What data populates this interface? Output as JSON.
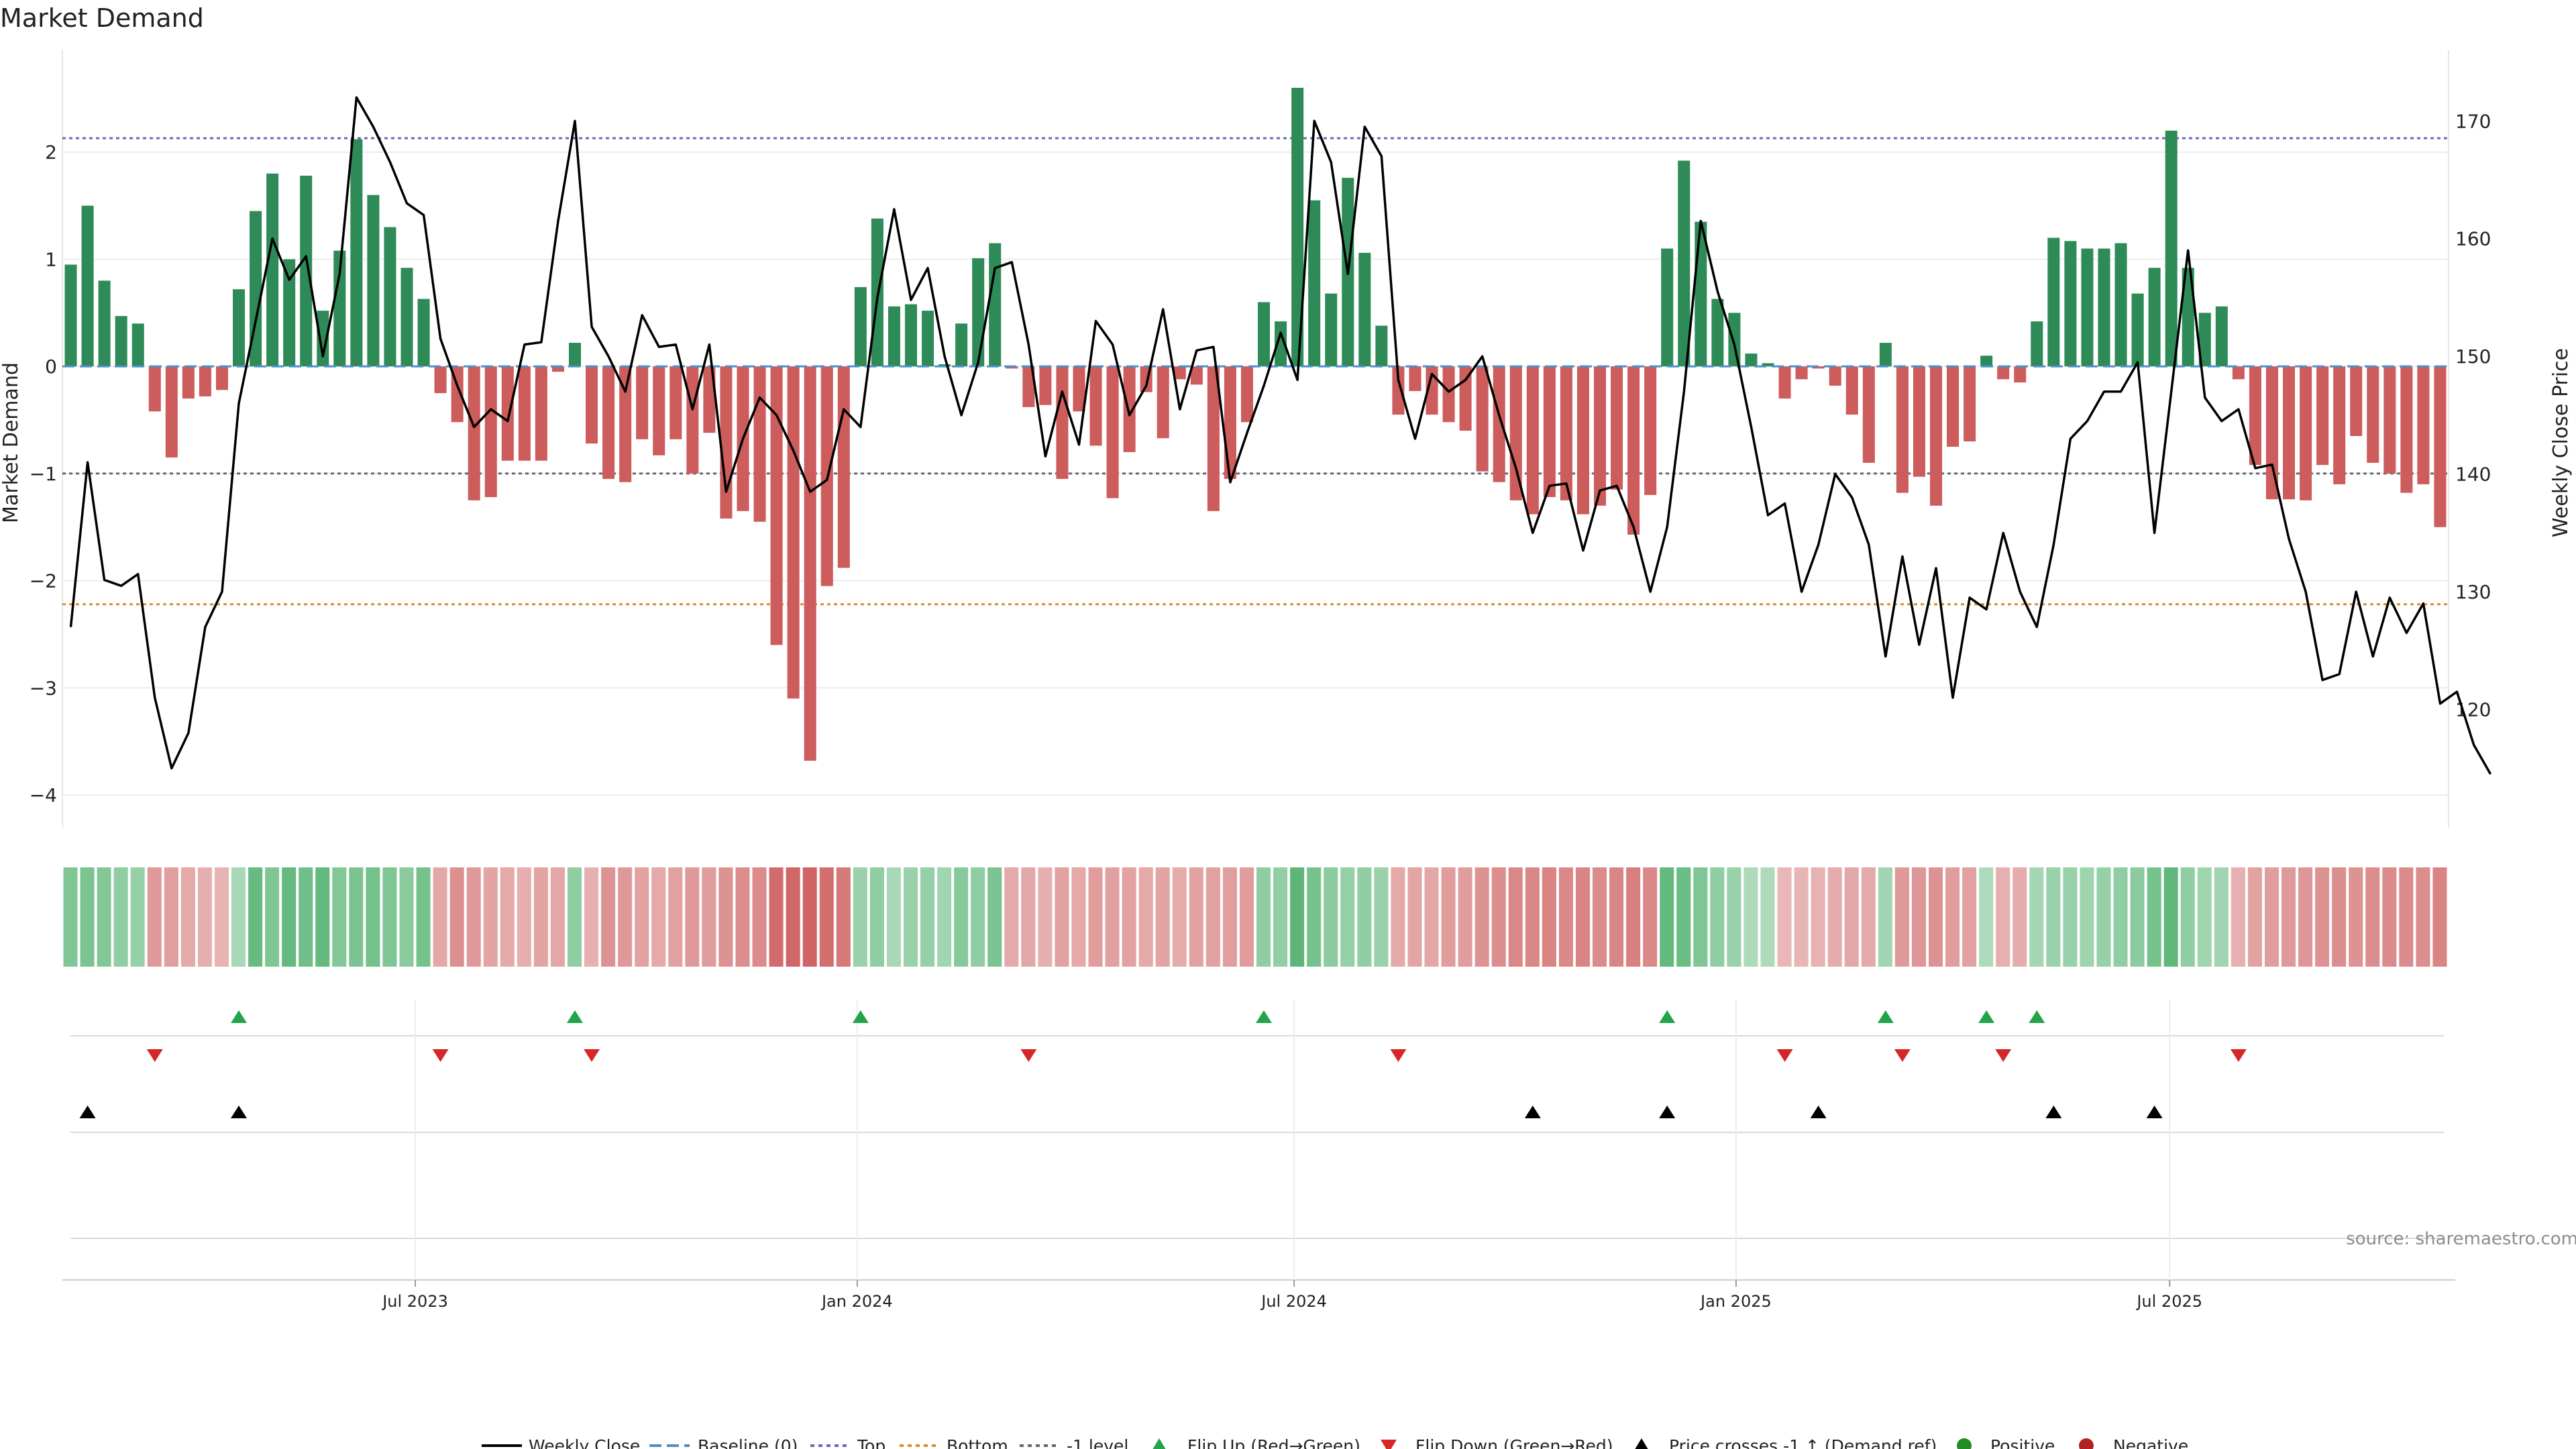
{
  "chart_data": {
    "type": "bar",
    "title": "Market Demand",
    "ylabel_left": "Market Demand",
    "ylabel_right": "Weekly Close Price",
    "ylim_left": [
      -4.3,
      2.95
    ],
    "ylim_right": [
      110,
      176
    ],
    "yticks_left": [
      2,
      1,
      0,
      -1,
      -2,
      -3,
      -4
    ],
    "yticks_left_labels": [
      "2",
      "1",
      "0",
      "−1",
      "−2",
      "−3",
      "−4"
    ],
    "yticks_right": [
      170,
      160,
      150,
      140,
      130,
      120
    ],
    "x_tick_labels": [
      "Jul 2023",
      "Jan 2024",
      "Jul 2024",
      "Jan 2025",
      "Jul 2025"
    ],
    "x_tick_weeks": [
      21,
      47.3,
      73.3,
      99.6,
      125.4
    ],
    "reference_lines": {
      "top": 2.13,
      "minus_one": -1.0,
      "bottom": -2.22,
      "baseline": 0
    },
    "colors": {
      "positive": "#2e8b57",
      "negative": "#cd5c5c",
      "price": "#000000",
      "top_line": "#6a6ab0",
      "bottom_line": "#e08a2c",
      "minus_one_line": "#666677",
      "baseline": "#4a90c8",
      "flip_up": "#23a34a",
      "flip_down": "#d62728",
      "cross": "#000000",
      "positive_dot": "#228b22",
      "negative_dot": "#b22222"
    },
    "demand_values": [
      0.95,
      1.5,
      0.8,
      0.47,
      0.4,
      -0.42,
      -0.85,
      -0.3,
      -0.28,
      -0.22,
      0.72,
      1.45,
      1.8,
      1.0,
      1.78,
      0.52,
      1.08,
      2.12,
      1.6,
      1.3,
      0.92,
      0.63,
      -0.25,
      -0.52,
      -1.25,
      -1.22,
      -0.88,
      -0.88,
      -0.88,
      -0.05,
      0.22,
      -0.72,
      -1.05,
      -1.08,
      -0.68,
      -0.83,
      -0.68,
      -1.0,
      -0.62,
      -1.42,
      -1.35,
      -1.45,
      -2.6,
      -3.1,
      -3.68,
      -2.05,
      -1.88,
      0.74,
      1.38,
      0.56,
      0.58,
      0.52,
      0.02,
      0.4,
      1.01,
      1.15,
      -0.02,
      -0.38,
      -0.36,
      -1.05,
      -0.42,
      -0.74,
      -1.23,
      -0.8,
      -0.24,
      -0.67,
      -0.12,
      -0.17,
      -1.35,
      -1.05,
      -0.52,
      0.6,
      0.42,
      2.6,
      1.55,
      0.68,
      1.76,
      1.06,
      0.38,
      -0.45,
      -0.23,
      -0.45,
      -0.52,
      -0.6,
      -0.98,
      -1.08,
      -1.25,
      -1.38,
      -1.22,
      -1.25,
      -1.38,
      -1.3,
      -1.15,
      -1.57,
      -1.2,
      1.1,
      1.92,
      1.35,
      0.63,
      0.5,
      0.12,
      0.03,
      -0.3,
      -0.12,
      -0.02,
      -0.18,
      -0.45,
      -0.9,
      0.22,
      -1.18,
      -1.03,
      -1.3,
      -0.75,
      -0.7,
      0.1,
      -0.12,
      -0.15,
      0.42,
      1.2,
      1.17,
      1.1,
      1.1,
      1.15,
      0.68,
      0.92,
      2.2,
      0.92,
      0.5,
      0.56,
      -0.12,
      -0.92,
      -1.24,
      -1.24,
      -1.25,
      -0.92,
      -1.1,
      -0.65,
      -0.9,
      -1.0,
      -1.18,
      -1.1,
      -1.5
    ],
    "price_values": [
      127,
      141,
      131,
      130.5,
      131.5,
      121,
      115,
      118,
      127,
      130,
      146,
      153,
      160,
      156.5,
      158.5,
      150,
      157,
      172,
      169.5,
      166.5,
      163,
      162,
      151.5,
      147.5,
      144,
      145.5,
      144.5,
      151,
      151.2,
      161.5,
      170,
      152.5,
      150,
      147,
      153.5,
      150.8,
      151,
      145.5,
      151,
      138.5,
      143,
      146.5,
      145,
      142,
      138.5,
      139.5,
      145.5,
      144,
      155,
      162.5,
      154.8,
      157.5,
      150,
      145,
      149.5,
      157.5,
      158,
      151,
      141.5,
      147,
      142.5,
      153,
      151,
      145,
      147.5,
      154,
      145.5,
      150.5,
      150.8,
      139.3,
      143.5,
      147.5,
      152,
      148,
      170,
      166.5,
      157,
      169.5,
      167,
      148,
      143,
      148.5,
      147,
      148,
      150,
      145,
      140.5,
      135,
      139,
      139.2,
      133.5,
      138.6,
      139,
      135.5,
      130,
      135.5,
      147,
      161.5,
      155.5,
      151,
      144,
      136.5,
      137.5,
      130,
      134,
      140,
      138,
      134,
      124.5,
      133,
      125.5,
      132,
      121,
      129.5,
      128.5,
      135,
      130,
      127,
      134,
      143,
      144.5,
      147,
      147,
      149.5,
      135,
      147,
      159,
      146.5,
      144.5,
      145.5,
      140.5,
      140.8,
      134.5,
      130,
      122.5,
      123,
      130,
      124.5,
      129.5,
      126.5,
      129,
      120.5,
      121.5,
      117,
      114.5
    ],
    "heat_strip_values": [
      0.72,
      0.75,
      0.7,
      0.62,
      0.58,
      -0.62,
      -0.58,
      -0.5,
      -0.46,
      -0.44,
      0.45,
      0.88,
      0.72,
      0.9,
      0.82,
      0.9,
      0.7,
      0.75,
      0.8,
      0.72,
      0.65,
      0.78,
      -0.52,
      -0.68,
      -0.62,
      -0.54,
      -0.5,
      -0.47,
      -0.54,
      -0.52,
      0.62,
      -0.45,
      -0.66,
      -0.62,
      -0.55,
      -0.5,
      -0.56,
      -0.62,
      -0.6,
      -0.66,
      -0.7,
      -0.72,
      -0.95,
      -0.98,
      -1.0,
      -0.92,
      -0.85,
      0.55,
      0.62,
      0.45,
      0.55,
      0.58,
      0.5,
      0.68,
      0.62,
      0.75,
      -0.5,
      -0.52,
      -0.46,
      -0.55,
      -0.5,
      -0.6,
      -0.56,
      -0.55,
      -0.5,
      -0.54,
      -0.48,
      -0.55,
      -0.56,
      -0.58,
      -0.6,
      0.62,
      0.6,
      0.95,
      0.78,
      0.64,
      0.58,
      0.6,
      0.55,
      -0.5,
      -0.54,
      -0.52,
      -0.6,
      -0.6,
      -0.66,
      -0.7,
      -0.74,
      -0.75,
      -0.78,
      -0.74,
      -0.76,
      -0.72,
      -0.76,
      -0.8,
      -0.74,
      0.9,
      0.86,
      0.72,
      0.62,
      0.55,
      0.42,
      0.42,
      -0.4,
      -0.42,
      -0.44,
      -0.48,
      -0.52,
      -0.5,
      0.5,
      -0.62,
      -0.64,
      -0.66,
      -0.6,
      -0.56,
      0.42,
      -0.45,
      -0.48,
      0.48,
      0.55,
      0.56,
      0.52,
      0.58,
      0.62,
      0.64,
      0.78,
      0.92,
      0.62,
      0.52,
      0.5,
      -0.45,
      -0.55,
      -0.58,
      -0.62,
      -0.64,
      -0.66,
      -0.7,
      -0.66,
      -0.7,
      -0.72,
      -0.72,
      -0.7,
      -0.76
    ],
    "flip_up_weeks": [
      10,
      30,
      47,
      71,
      95,
      108,
      114,
      117
    ],
    "flip_down_weeks": [
      5,
      22,
      31,
      57,
      79,
      102,
      109,
      115,
      129
    ],
    "price_cross_weeks": [
      1,
      10,
      87,
      95,
      104,
      118,
      124
    ],
    "legend": [
      "Weekly Close",
      "Baseline (0)",
      "Top",
      "Bottom",
      "-1 level",
      "Flip Up (Red→Green)",
      "Flip Down (Green→Red)",
      "Price crosses -1 ↑ (Demand ref)",
      "Positive",
      "Negative"
    ],
    "source": "source: sharemaestro.com"
  }
}
